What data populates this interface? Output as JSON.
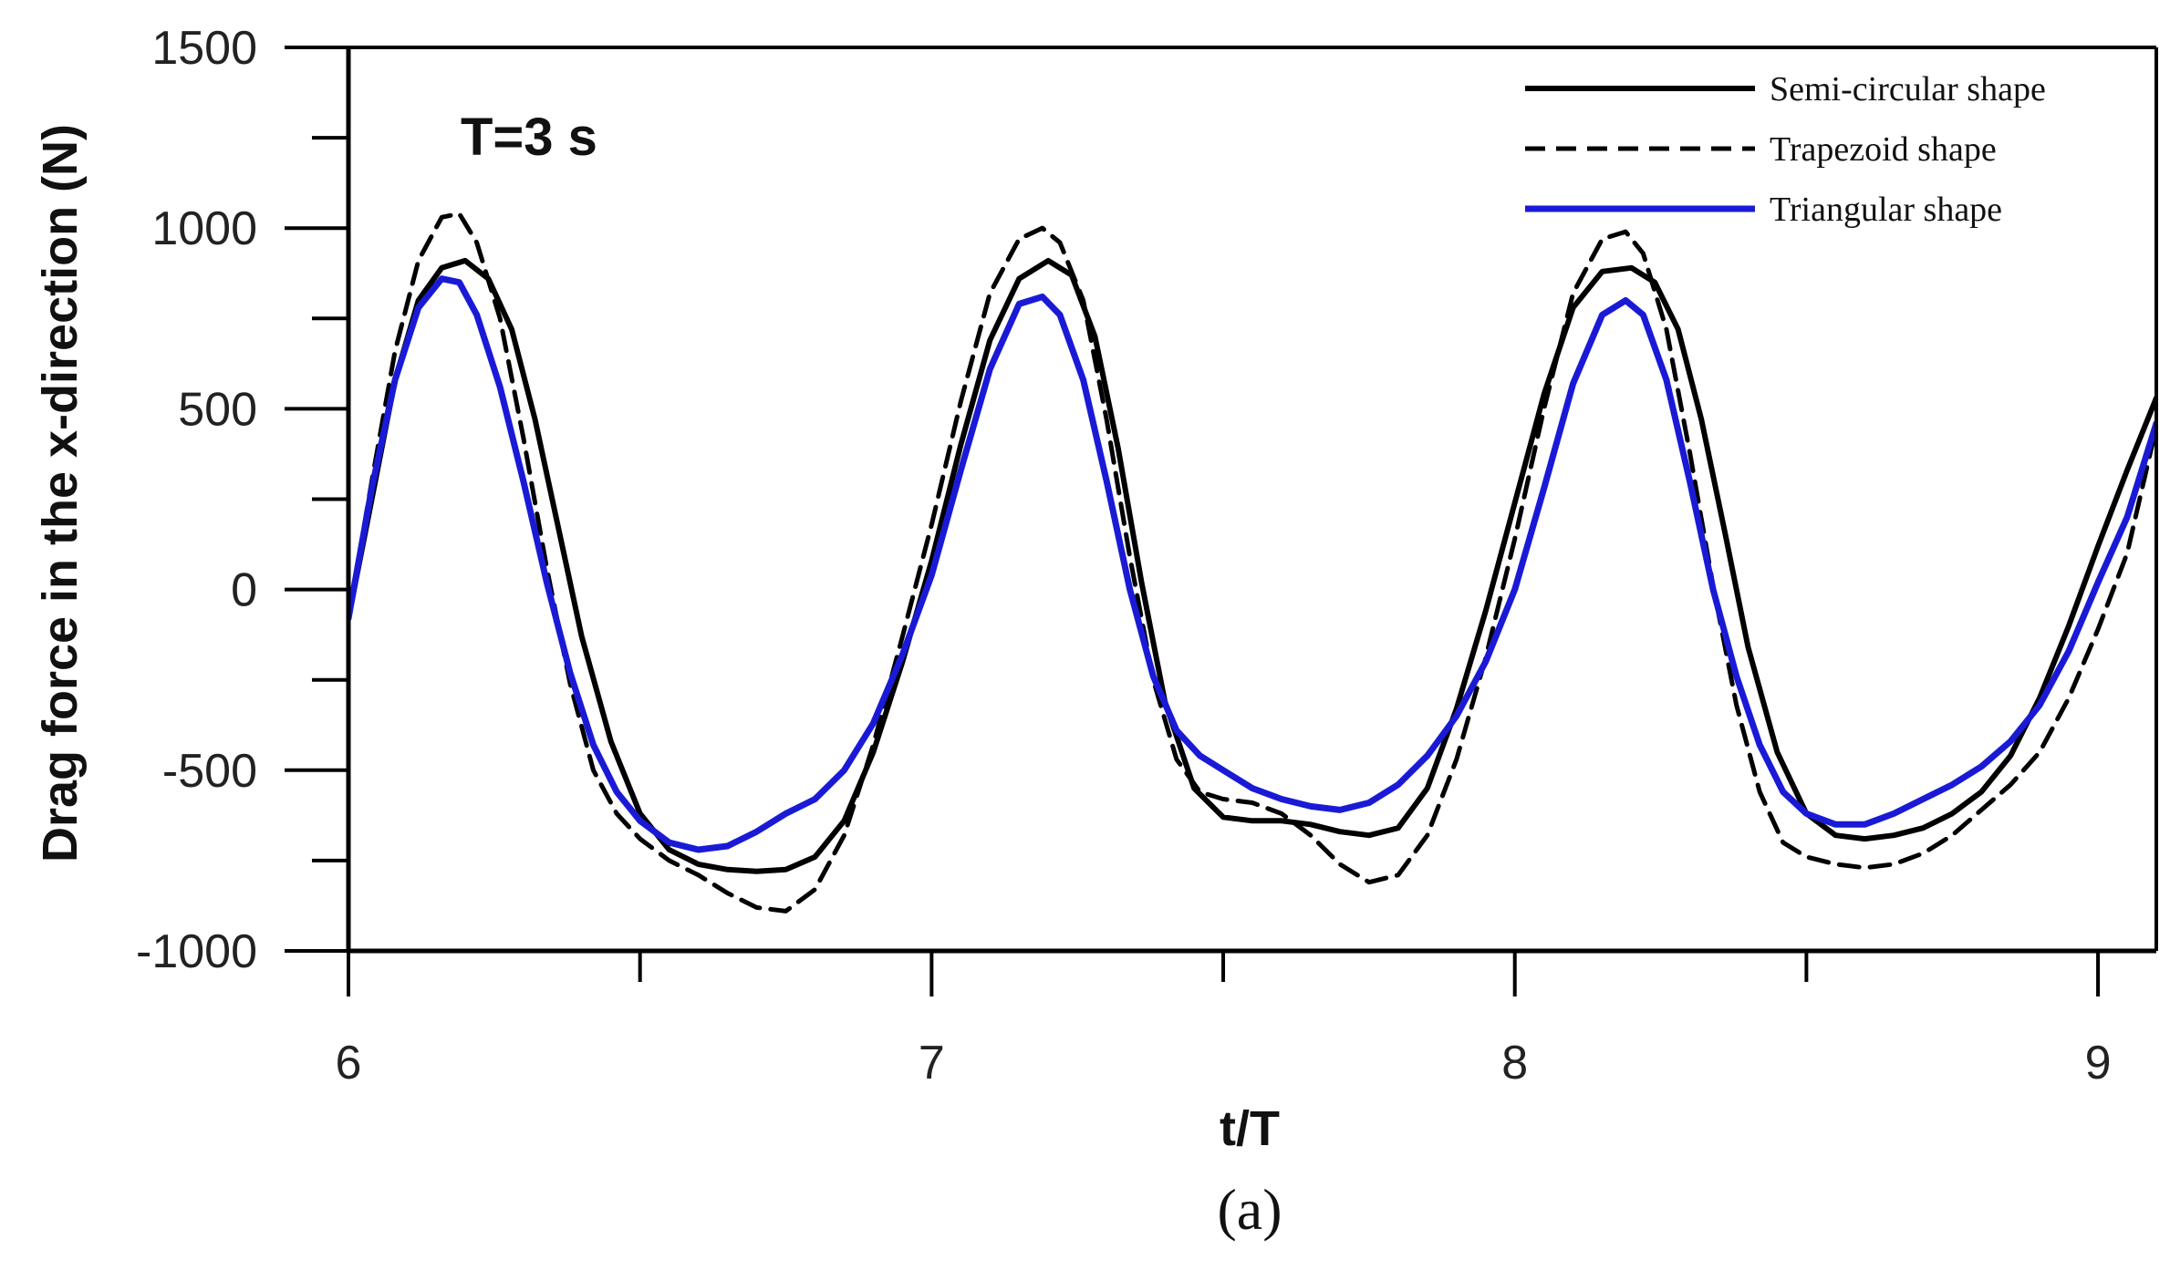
{
  "chart_data": {
    "type": "line",
    "annotation": "T=3 s",
    "xlabel": "t/T",
    "ylabel": "Drag force in the x-direction (N)",
    "xlim": [
      6,
      9.1
    ],
    "ylim": [
      -1000,
      1500
    ],
    "x_ticks": [
      6,
      7,
      8,
      9
    ],
    "x_tick_labels": [
      "6",
      "7",
      "8",
      "9"
    ],
    "x_minor_ticks": [
      6.5,
      7.5,
      8.5
    ],
    "y_ticks": [
      -1000,
      -500,
      0,
      500,
      1000,
      1500
    ],
    "y_tick_labels": [
      "-1000",
      "-500",
      "0",
      "500",
      "1000",
      "1500"
    ],
    "y_minor_ticks": [
      -750,
      -250,
      250,
      750,
      1250
    ],
    "grid": false,
    "legend_position": "top-right",
    "caption": "(a)",
    "series": [
      {
        "name": "Semi-circular shape",
        "color": "#000000",
        "dash": "solid",
        "x": [
          6.0,
          6.04,
          6.08,
          6.12,
          6.16,
          6.2,
          6.24,
          6.28,
          6.32,
          6.36,
          6.4,
          6.45,
          6.5,
          6.55,
          6.6,
          6.65,
          6.7,
          6.75,
          6.8,
          6.85,
          6.9,
          6.95,
          7.0,
          7.05,
          7.1,
          7.15,
          7.2,
          7.24,
          7.28,
          7.32,
          7.36,
          7.4,
          7.45,
          7.5,
          7.55,
          7.6,
          7.65,
          7.7,
          7.75,
          7.8,
          7.85,
          7.9,
          7.95,
          8.0,
          8.05,
          8.1,
          8.15,
          8.2,
          8.24,
          8.28,
          8.32,
          8.36,
          8.4,
          8.45,
          8.5,
          8.55,
          8.6,
          8.65,
          8.7,
          8.75,
          8.8,
          8.85,
          8.9,
          8.95,
          9.0,
          9.05,
          9.1
        ],
        "y": [
          -80,
          250,
          580,
          800,
          890,
          910,
          860,
          720,
          470,
          170,
          -130,
          -420,
          -620,
          -720,
          -760,
          -775,
          -780,
          -775,
          -740,
          -640,
          -450,
          -200,
          80,
          400,
          690,
          860,
          910,
          870,
          700,
          390,
          20,
          -310,
          -550,
          -630,
          -640,
          -640,
          -650,
          -670,
          -680,
          -660,
          -550,
          -330,
          -60,
          240,
          540,
          780,
          880,
          890,
          850,
          720,
          470,
          160,
          -160,
          -450,
          -620,
          -680,
          -690,
          -680,
          -660,
          -620,
          -560,
          -460,
          -300,
          -100,
          120,
          330,
          530
        ]
      },
      {
        "name": "Trapezoid shape",
        "color": "#000000",
        "dash": "dashed",
        "x": [
          6.0,
          6.04,
          6.08,
          6.12,
          6.16,
          6.19,
          6.22,
          6.26,
          6.3,
          6.34,
          6.38,
          6.42,
          6.46,
          6.5,
          6.55,
          6.6,
          6.65,
          6.7,
          6.75,
          6.8,
          6.85,
          6.9,
          6.95,
          7.0,
          7.05,
          7.1,
          7.15,
          7.19,
          7.22,
          7.26,
          7.3,
          7.34,
          7.38,
          7.42,
          7.46,
          7.5,
          7.55,
          7.6,
          7.65,
          7.7,
          7.75,
          7.8,
          7.85,
          7.9,
          7.95,
          8.0,
          8.05,
          8.1,
          8.15,
          8.19,
          8.22,
          8.26,
          8.3,
          8.34,
          8.38,
          8.42,
          8.46,
          8.5,
          8.55,
          8.6,
          8.65,
          8.7,
          8.75,
          8.8,
          8.85,
          8.9,
          8.95,
          9.0,
          9.05,
          9.1
        ],
        "y": [
          -80,
          300,
          660,
          910,
          1030,
          1040,
          960,
          750,
          420,
          60,
          -260,
          -500,
          -620,
          -690,
          -750,
          -790,
          -840,
          -880,
          -890,
          -830,
          -680,
          -430,
          -130,
          180,
          520,
          820,
          970,
          1000,
          960,
          800,
          470,
          90,
          -250,
          -470,
          -560,
          -580,
          -590,
          -620,
          -680,
          -760,
          -810,
          -790,
          -680,
          -470,
          -190,
          140,
          500,
          820,
          970,
          990,
          930,
          720,
          380,
          10,
          -320,
          -560,
          -700,
          -740,
          -760,
          -770,
          -760,
          -730,
          -680,
          -610,
          -540,
          -450,
          -300,
          -110,
          100,
          450
        ]
      },
      {
        "name": "Triangular shape",
        "color": "#1a1ad6",
        "dash": "solid",
        "x": [
          6.0,
          6.04,
          6.08,
          6.12,
          6.16,
          6.19,
          6.22,
          6.26,
          6.3,
          6.34,
          6.38,
          6.42,
          6.46,
          6.5,
          6.55,
          6.6,
          6.65,
          6.7,
          6.75,
          6.8,
          6.85,
          6.9,
          6.95,
          7.0,
          7.05,
          7.1,
          7.15,
          7.19,
          7.22,
          7.26,
          7.3,
          7.34,
          7.38,
          7.42,
          7.46,
          7.5,
          7.55,
          7.6,
          7.65,
          7.7,
          7.75,
          7.8,
          7.85,
          7.9,
          7.95,
          8.0,
          8.05,
          8.1,
          8.15,
          8.19,
          8.22,
          8.26,
          8.3,
          8.34,
          8.38,
          8.42,
          8.46,
          8.5,
          8.55,
          8.6,
          8.65,
          8.7,
          8.75,
          8.8,
          8.85,
          8.9,
          8.95,
          9.0,
          9.05,
          9.1
        ],
        "y": [
          -80,
          280,
          580,
          780,
          860,
          850,
          760,
          560,
          300,
          20,
          -230,
          -430,
          -560,
          -640,
          -700,
          -720,
          -710,
          -670,
          -620,
          -580,
          -500,
          -370,
          -180,
          40,
          330,
          610,
          790,
          810,
          760,
          580,
          300,
          0,
          -240,
          -390,
          -460,
          -500,
          -550,
          -580,
          -600,
          -610,
          -590,
          -540,
          -460,
          -350,
          -200,
          0,
          280,
          570,
          760,
          800,
          760,
          580,
          300,
          0,
          -240,
          -430,
          -560,
          -620,
          -650,
          -650,
          -620,
          -580,
          -540,
          -490,
          -420,
          -320,
          -170,
          20,
          200,
          460
        ]
      }
    ]
  }
}
